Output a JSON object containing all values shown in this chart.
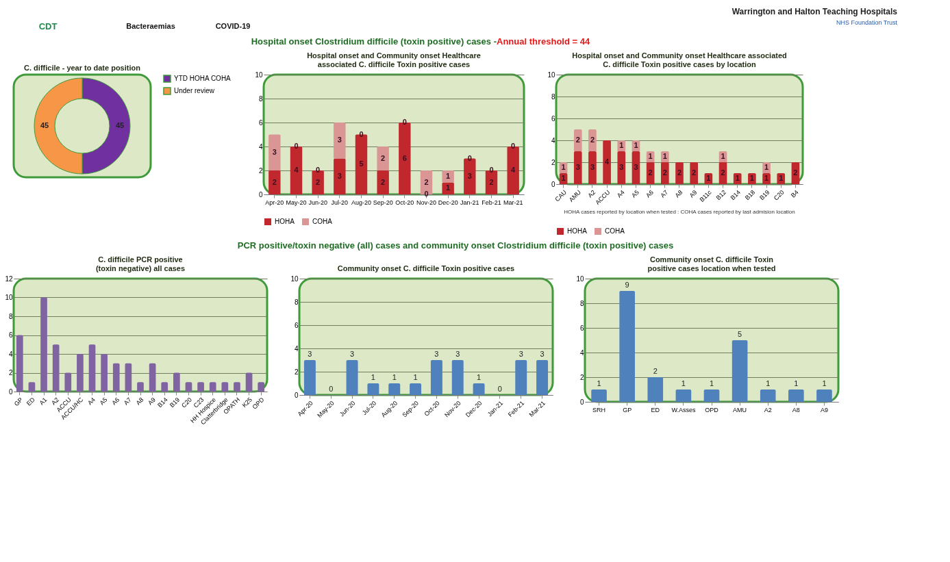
{
  "chart_data": [
    {
      "type": "donut",
      "title": "C. difficile - year to date position",
      "categories": [
        "YTD HOHA COHA",
        "Under review"
      ],
      "values": [
        45,
        45
      ],
      "colors": [
        "#7030a0",
        "#f79646"
      ],
      "data_labels": true,
      "legend": "right",
      "annotations": [
        "CDT",
        "Bacteraemias",
        "COVID-19",
        "Warrington and Halton Teaching Hospitals",
        "NHS Foundation Trust",
        "Hospital onset Clostridium difficile (toxin positive) cases - ",
        "Annual threshold = 44"
      ]
    },
    {
      "type": "bar",
      "title": "Hospital onset and Community onset Healthcare associated C. difficile Toxin positive cases",
      "categories": [
        "Apr-20",
        "May-20",
        "Jun-20",
        "Jul-20",
        "Aug-20",
        "Sep-20",
        "Oct-20",
        "Nov-20",
        "Dec-20",
        "Jan-21",
        "Feb-21",
        "Mar-21"
      ],
      "stacked": true,
      "series": [
        {
          "name": "HOHA",
          "color": "#c0282d",
          "values": [
            2,
            4,
            2,
            3,
            5,
            2,
            6,
            0,
            1,
            3,
            2,
            4
          ]
        },
        {
          "name": "COHA",
          "color": "#d99694",
          "values": [
            3,
            0,
            0,
            3,
            0,
            2,
            0,
            2,
            1,
            0,
            0,
            0
          ]
        }
      ],
      "data_labels": true,
      "ylim": [
        0,
        10
      ],
      "yticks": [
        0,
        2,
        4,
        6,
        8,
        10
      ],
      "grid": "y",
      "legend": "bottom"
    },
    {
      "type": "bar",
      "title": "Hospital onset and Community onset Healthcare associated C. difficile Toxin positive cases by location",
      "categories": [
        "CAU",
        "AMU",
        "A2",
        "ACCU",
        "A4",
        "A5",
        "A6",
        "A7",
        "A8",
        "A9",
        "B11c",
        "B12",
        "B14",
        "B18",
        "B19",
        "C20",
        "B4"
      ],
      "stacked": true,
      "series": [
        {
          "name": "HOHA",
          "color": "#c0282d",
          "values": [
            1,
            3,
            3,
            4,
            3,
            3,
            2,
            2,
            2,
            2,
            1,
            2,
            1,
            1,
            1,
            1,
            2
          ],
          "value_labels": [
            "1",
            "3",
            "3",
            "4",
            "3",
            "3",
            "2",
            "2",
            "2",
            "2",
            "1",
            "2",
            "1",
            "1",
            "1",
            "1",
            "2"
          ]
        },
        {
          "name": "COHA",
          "color": "#d99694",
          "values": [
            1,
            2,
            2,
            0,
            1,
            1,
            1,
            1,
            0,
            0,
            0,
            1,
            0,
            0,
            1,
            0,
            0
          ],
          "value_labels": [
            "1",
            "2",
            "2",
            null,
            "1",
            "1",
            "1",
            "1",
            null,
            null,
            null,
            "1",
            null,
            null,
            "1",
            null,
            null
          ]
        }
      ],
      "ylim": [
        0,
        10
      ],
      "yticks": [
        0,
        2,
        4,
        6,
        8,
        10
      ],
      "grid": "y",
      "legend": "bottom",
      "annotations": [
        "HOHA cases reported by location when tested : COHA cases reported by last admision location"
      ]
    },
    {
      "type": "bar",
      "title": "C. difficile PCR positive (toxin negative) all cases",
      "categories": [
        "GP",
        "ED",
        "A1",
        "A2",
        "ACCU",
        "ACCU/HC",
        "A4",
        "A5",
        "A6",
        "A7",
        "A8",
        "A9",
        "B14",
        "B19",
        "C20",
        "C23",
        "HH Hospice",
        "Clatterbridge",
        "OPATH",
        "K25",
        "OPD"
      ],
      "values": [
        6,
        1,
        10,
        5,
        2,
        4,
        5,
        4,
        3,
        3,
        1,
        3,
        1,
        2,
        1,
        1,
        1,
        1,
        1,
        2,
        1
      ],
      "color": "#8064a2",
      "ylim": [
        0,
        12
      ],
      "yticks": [
        0,
        2,
        4,
        6,
        8,
        10,
        12
      ],
      "grid": "y",
      "annotations": [
        "PCR positive/toxin negative (all) cases and community onset Clostridium difficile (toxin positive) cases"
      ]
    },
    {
      "type": "bar",
      "title": "Community onset C. difficile Toxin positive cases",
      "categories": [
        "Apr-20",
        "May-20",
        "Jun-20",
        "Jul-20",
        "Aug-20",
        "Sep-20",
        "Oct-20",
        "Nov-20",
        "Dec-20",
        "Jan-21",
        "Feb-21",
        "Mar-21"
      ],
      "values": [
        3,
        0,
        3,
        1,
        1,
        1,
        3,
        3,
        1,
        0,
        3,
        3
      ],
      "color": "#4f81bd",
      "data_labels": true,
      "ylim": [
        0,
        10
      ],
      "yticks": [
        0,
        2,
        4,
        6,
        8,
        10
      ],
      "grid": "y"
    },
    {
      "type": "bar",
      "title": "Community onset C. difficile Toxin positive cases location when tested",
      "categories": [
        "SRH",
        "GP",
        "ED",
        "W.Asses",
        "OPD",
        "AMU",
        "A2",
        "A8",
        "A9"
      ],
      "values": [
        1,
        9,
        2,
        1,
        1,
        5,
        1,
        1,
        1
      ],
      "color": "#4f81bd",
      "data_labels": true,
      "ylim": [
        0,
        10
      ],
      "yticks": [
        0,
        2,
        4,
        6,
        8,
        10
      ],
      "grid": "y"
    }
  ]
}
